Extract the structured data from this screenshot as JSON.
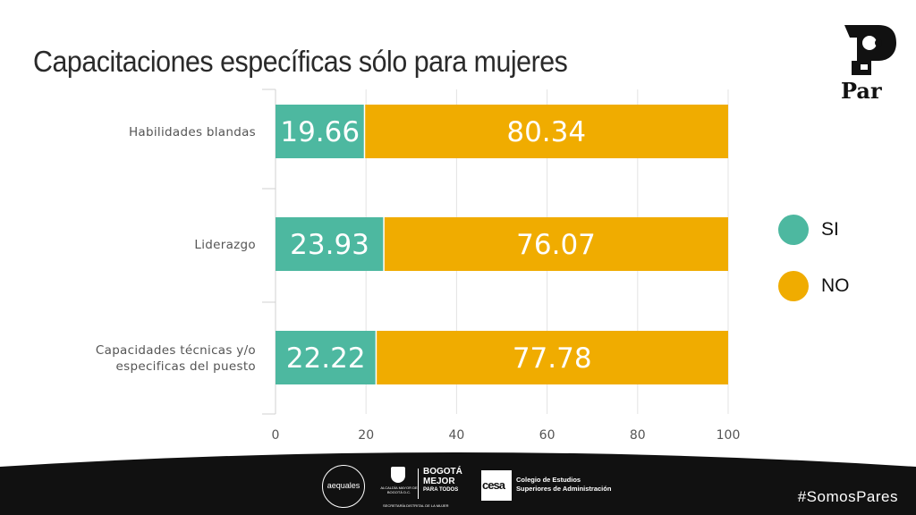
{
  "header": {
    "title": "Capacitaciones específicas sólo para mujeres",
    "logo_text": "Par"
  },
  "chart_data": {
    "type": "bar",
    "orientation": "horizontal",
    "stacked": true,
    "title": "Capacitaciones específicas sólo para mujeres",
    "categories": [
      "Habilidades blandas",
      "Liderazgo",
      "Capacidades técnicas y/o específicas del puesto"
    ],
    "category_lines": [
      [
        "Habilidades blandas"
      ],
      [
        "Liderazgo"
      ],
      [
        "Capacidades técnicas y/o",
        "especificas del puesto"
      ]
    ],
    "series": [
      {
        "name": "SI",
        "color": "#4db8a0",
        "values": [
          19.66,
          23.93,
          22.22
        ],
        "labels": [
          "19.66",
          "23.93",
          "22.22"
        ]
      },
      {
        "name": "NO",
        "color": "#f0ac00",
        "values": [
          80.34,
          76.07,
          77.78
        ],
        "labels": [
          "80.34",
          "76.07",
          "77.78"
        ]
      }
    ],
    "xlim": [
      0,
      100
    ],
    "xticks": [
      0,
      20,
      40,
      60,
      80,
      100
    ],
    "xtick_labels": [
      "0",
      "20",
      "40",
      "60",
      "80",
      "100"
    ],
    "grid": true,
    "legend_position": "right"
  },
  "footer": {
    "sponsors": {
      "aequales": "aequales",
      "alcaldia": "ALCALDÍA MAYOR DE BOGOTÁ D.C.",
      "bogota_line1": "BOGOTÁ",
      "bogota_line2": "MEJOR",
      "bogota_line3": "PARA TODOS",
      "secretaria": "SECRETARÍA DISTRITAL DE LA MUJER",
      "cesa_mark": "cesa",
      "cesa_line1": "Colegio de Estudios",
      "cesa_line2": "Superiores de Administración"
    },
    "hashtag": "#SomosPares"
  }
}
